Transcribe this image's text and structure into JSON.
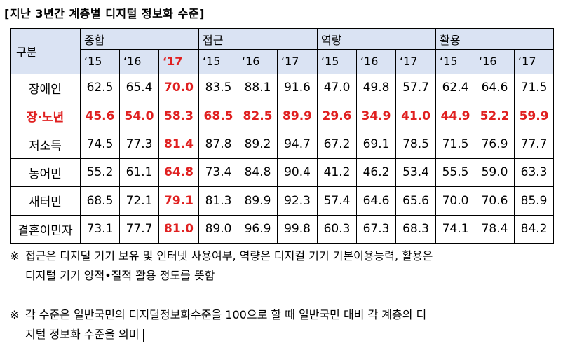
{
  "title": "[지난 3년간 계층별 디지털 정보화 수준]",
  "table": {
    "gubun_label": "구분",
    "groups": [
      "종합",
      "접근",
      "역량",
      "활용"
    ],
    "years": [
      "‘15",
      "‘16",
      "‘17"
    ],
    "rows": [
      {
        "label": "장애인",
        "values": [
          "62.5",
          "65.4",
          "70.0",
          "83.5",
          "88.1",
          "91.6",
          "47.0",
          "49.8",
          "57.7",
          "62.4",
          "64.6",
          "71.5"
        ]
      },
      {
        "label": "장·노년",
        "values": [
          "45.6",
          "54.0",
          "58.3",
          "68.5",
          "82.5",
          "89.9",
          "29.6",
          "34.9",
          "41.0",
          "44.9",
          "52.2",
          "59.9"
        ]
      },
      {
        "label": "저소득",
        "values": [
          "74.5",
          "77.3",
          "81.4",
          "87.8",
          "89.2",
          "94.7",
          "67.2",
          "69.1",
          "78.5",
          "71.5",
          "76.9",
          "77.7"
        ]
      },
      {
        "label": "농어민",
        "values": [
          "55.2",
          "61.1",
          "64.8",
          "73.4",
          "84.8",
          "90.4",
          "41.2",
          "46.2",
          "53.4",
          "55.5",
          "59.0",
          "63.3"
        ]
      },
      {
        "label": "새터민",
        "values": [
          "68.5",
          "72.1",
          "79.1",
          "81.3",
          "89.9",
          "92.3",
          "57.4",
          "64.6",
          "65.6",
          "70.0",
          "70.6",
          "85.9"
        ]
      },
      {
        "label": "결혼이민자",
        "values": [
          "73.1",
          "77.7",
          "81.0",
          "89.0",
          "96.9",
          "99.8",
          "60.3",
          "67.3",
          "68.3",
          "74.1",
          "78.4",
          "84.2"
        ]
      }
    ]
  },
  "notes": {
    "mark": "※",
    "note1_line1": "접근은 디지털 기기 보유 및 인터넷 사용여부, 역량은 디지컬 기기 기본이용능력, 활용은",
    "note1_line2": "디지털 기기 양적•질적 활용 정도를 뜻함",
    "note2_line1": "각 수준은 일반국민의 디지털정보화수준을 100으로 할 때 일반국민 대비 각 계층의 디",
    "note2_line2": "지털 정보화 수준을 의미"
  },
  "colors": {
    "header_bg": "#dae3f3",
    "highlight": "#e02020"
  }
}
